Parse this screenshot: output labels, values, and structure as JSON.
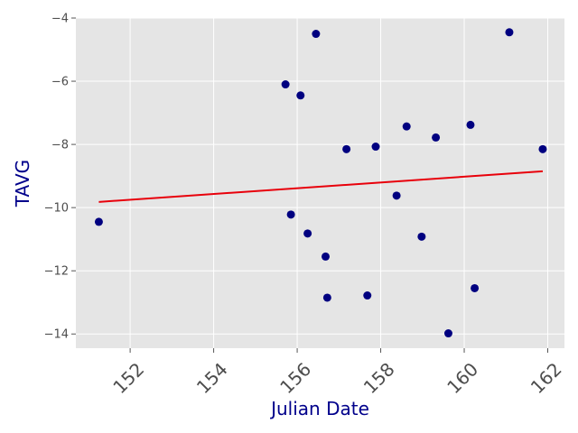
{
  "chart_data": {
    "type": "scatter",
    "title": "",
    "xlabel": "Julian Date",
    "ylabel": "TAVG",
    "xlim": [
      150.7,
      162.4
    ],
    "ylim": [
      -14.45,
      -4.0
    ],
    "x_ticks": [
      152,
      154,
      156,
      158,
      160,
      162
    ],
    "y_ticks": [
      -14,
      -12,
      -10,
      -8,
      -6,
      -4
    ],
    "grid": true,
    "legend": "none",
    "colors": {
      "background": "#e5e5e5",
      "grid": "#ffffff",
      "points": "#000080",
      "trendline": "#e8000b",
      "axis_label": "#00008b"
    },
    "series": [
      {
        "points": [
          {
            "x": 151.25,
            "y": -10.45
          },
          {
            "x": 155.72,
            "y": -6.1
          },
          {
            "x": 155.85,
            "y": -10.22
          },
          {
            "x": 156.08,
            "y": -6.45
          },
          {
            "x": 156.25,
            "y": -10.82
          },
          {
            "x": 156.45,
            "y": -4.5
          },
          {
            "x": 156.68,
            "y": -11.55
          },
          {
            "x": 156.72,
            "y": -12.85
          },
          {
            "x": 157.18,
            "y": -8.15
          },
          {
            "x": 157.68,
            "y": -12.78
          },
          {
            "x": 157.88,
            "y": -8.07
          },
          {
            "x": 158.38,
            "y": -9.62
          },
          {
            "x": 158.62,
            "y": -7.43
          },
          {
            "x": 158.98,
            "y": -10.92
          },
          {
            "x": 159.32,
            "y": -7.78
          },
          {
            "x": 159.62,
            "y": -13.98
          },
          {
            "x": 160.15,
            "y": -7.38
          },
          {
            "x": 160.25,
            "y": -12.55
          },
          {
            "x": 161.08,
            "y": -4.45
          },
          {
            "x": 161.88,
            "y": -8.15
          }
        ]
      }
    ],
    "trendline": {
      "x": [
        151.25,
        161.88
      ],
      "y": [
        -9.82,
        -8.85
      ]
    }
  }
}
